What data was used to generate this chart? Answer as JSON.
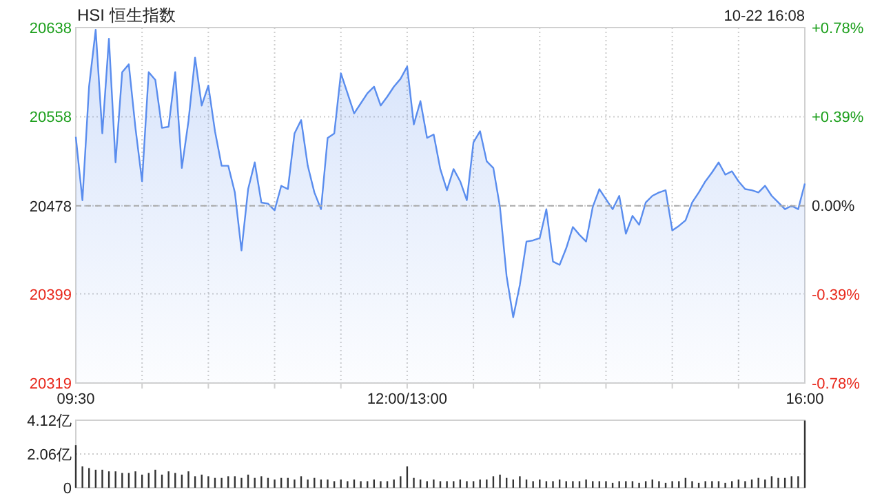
{
  "chart_data": [
    {
      "type": "area",
      "title": "HSI 恒生指数",
      "subtitle": "10-22 16:08",
      "categories": [
        "09:30",
        null,
        null,
        null,
        null,
        null,
        null,
        null,
        null,
        null,
        null,
        null,
        null,
        null,
        null,
        null,
        null,
        null,
        null,
        null,
        null,
        null,
        null,
        null,
        null,
        null,
        null,
        null,
        null,
        null,
        null,
        null,
        null,
        null,
        null,
        null,
        null,
        null,
        null,
        null,
        null,
        null,
        null,
        null,
        null,
        null,
        null,
        null,
        null,
        null,
        "12:00/13:00",
        null,
        null,
        null,
        null,
        null,
        null,
        null,
        null,
        null,
        null,
        null,
        null,
        null,
        null,
        null,
        null,
        null,
        null,
        null,
        null,
        null,
        null,
        null,
        null,
        null,
        null,
        null,
        null,
        null,
        null,
        null,
        null,
        null,
        null,
        null,
        null,
        null,
        null,
        null,
        null,
        null,
        null,
        null,
        null,
        null,
        null,
        null,
        null,
        null,
        null,
        null,
        null,
        null,
        null,
        null,
        null,
        null,
        null,
        null,
        "16:00"
      ],
      "series": [
        {
          "color": "#5a8dee",
          "values": [
            20540,
            20483,
            20585,
            20636,
            20543,
            20628,
            20517,
            20598,
            20605,
            20548,
            20500,
            20598,
            20591,
            20548,
            20549,
            20598,
            20512,
            20554,
            20611,
            20568,
            20586,
            20545,
            20514,
            20514,
            20490,
            20438,
            20493,
            20517,
            20481,
            20480,
            20474,
            20496,
            20493,
            20543,
            20555,
            20514,
            20490,
            20475,
            20539,
            20543,
            20597,
            20579,
            20561,
            20570,
            20579,
            20585,
            20568,
            20576,
            20585,
            20592,
            20603,
            20551,
            20572,
            20539,
            20542,
            20511,
            20492,
            20511,
            20500,
            20483,
            20535,
            20545,
            20518,
            20512,
            20477,
            20415,
            20378,
            20407,
            20446,
            20447,
            20449,
            20475,
            20428,
            20425,
            20440,
            20459,
            20452,
            20446,
            20477,
            20493,
            20484,
            20475,
            20487,
            20453,
            20469,
            20461,
            20481,
            20487,
            20490,
            20492,
            20456,
            20460,
            20465,
            20481,
            20490,
            20500,
            20508,
            20517,
            20506,
            20509,
            20500,
            20493,
            20492,
            20490,
            20496,
            20487,
            20481,
            20475,
            20478,
            20475,
            20498
          ]
        }
      ],
      "ylim": [
        20319,
        20638
      ],
      "yticks": [
        20319,
        20399,
        20478,
        20558,
        20638
      ],
      "y2lim": [
        -0.78,
        0.78
      ],
      "y2ticks": [
        {
          "value": -0.78,
          "label": "-0.78%"
        },
        {
          "value": -0.39,
          "label": "-0.39%"
        },
        {
          "value": 0,
          "label": "0.00%"
        },
        {
          "value": 0.39,
          "label": "+0.39%"
        },
        {
          "value": 0.78,
          "label": "+0.78%"
        }
      ],
      "ref_lines": [
        {
          "axis": "y",
          "value": 20478,
          "color": "#aaaaaa",
          "line_style": "dashed"
        }
      ],
      "grid": true
    },
    {
      "type": "bar",
      "color": "#333333",
      "tick_labels": "y",
      "grid": "y",
      "categories": [
        null,
        null,
        null,
        null,
        null,
        null,
        null,
        null,
        null,
        null,
        null,
        null,
        null,
        null,
        null,
        null,
        null,
        null,
        null,
        null,
        null,
        null,
        null,
        null,
        null,
        null,
        null,
        null,
        null,
        null,
        null,
        null,
        null,
        null,
        null,
        null,
        null,
        null,
        null,
        null,
        null,
        null,
        null,
        null,
        null,
        null,
        null,
        null,
        null,
        null,
        null,
        null,
        null,
        null,
        null,
        null,
        null,
        null,
        null,
        null,
        null,
        null,
        null,
        null,
        null,
        null,
        null,
        null,
        null,
        null,
        null,
        null,
        null,
        null,
        null,
        null,
        null,
        null,
        null,
        null,
        null,
        null,
        null,
        null,
        null,
        null,
        null,
        null,
        null,
        null,
        null,
        null,
        null,
        null,
        null,
        null,
        null,
        null,
        null,
        null,
        null,
        null,
        null,
        null,
        null,
        null,
        null,
        null,
        null,
        null,
        null
      ],
      "values": [
        2.6,
        1.3,
        1.2,
        1.1,
        1.1,
        1.0,
        1.0,
        0.9,
        0.9,
        1.0,
        0.8,
        0.9,
        1.1,
        0.8,
        1.0,
        0.9,
        0.8,
        1.0,
        0.7,
        0.8,
        0.7,
        0.6,
        0.6,
        0.7,
        0.7,
        0.6,
        0.8,
        0.6,
        0.7,
        0.6,
        0.5,
        0.6,
        0.6,
        0.5,
        0.7,
        0.5,
        0.6,
        0.5,
        0.5,
        0.4,
        0.5,
        0.4,
        0.5,
        0.4,
        0.4,
        0.5,
        0.4,
        0.4,
        0.5,
        0.7,
        1.3,
        0.6,
        0.5,
        0.4,
        0.5,
        0.4,
        0.4,
        0.4,
        0.5,
        0.4,
        0.4,
        0.5,
        0.5,
        0.7,
        0.8,
        0.6,
        0.5,
        0.7,
        0.5,
        0.4,
        0.5,
        0.4,
        0.4,
        0.5,
        0.4,
        0.4,
        0.4,
        0.5,
        0.4,
        0.4,
        0.4,
        0.3,
        0.4,
        0.4,
        0.4,
        0.3,
        0.4,
        0.5,
        0.4,
        0.3,
        0.4,
        0.4,
        0.6,
        0.4,
        0.3,
        0.4,
        0.4,
        0.4,
        0.3,
        0.4,
        0.5,
        0.4,
        0.5,
        0.6,
        0.5,
        0.7,
        0.6,
        0.6,
        0.7,
        0.7,
        4.1
      ],
      "ylim": [
        0,
        4.12
      ],
      "yticks": [
        {
          "value": 0,
          "label": "0"
        },
        {
          "value": 2.06,
          "label": "2.06亿"
        },
        {
          "value": 4.12,
          "label": "4.12亿"
        }
      ]
    }
  ]
}
